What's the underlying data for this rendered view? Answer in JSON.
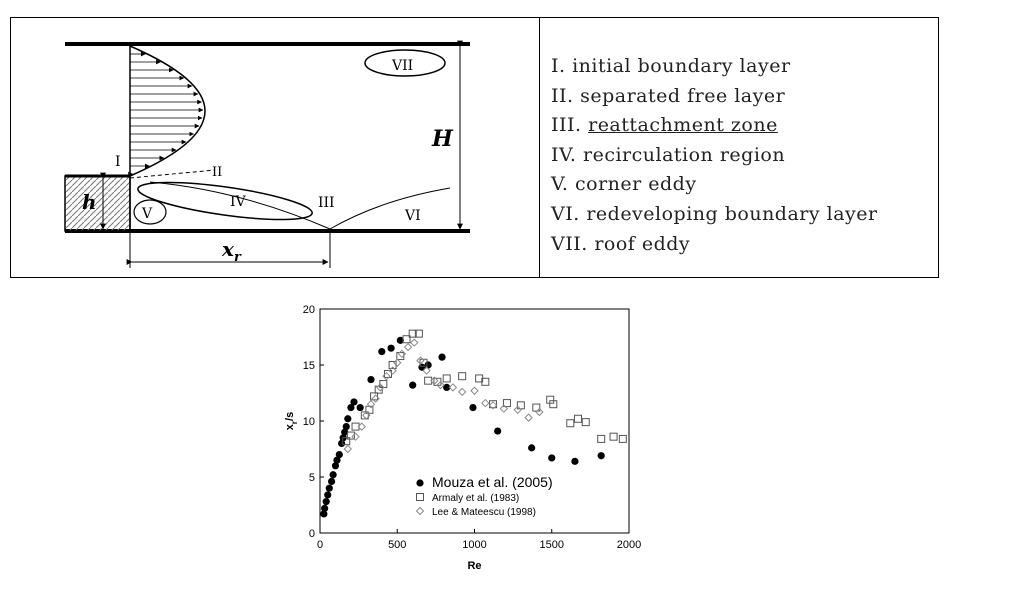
{
  "diagram": {
    "labels": {
      "roof": "VII",
      "height": "H",
      "initial": "I",
      "separated": "II",
      "recirculation": "IV",
      "reattachment": "III",
      "redeveloping": "VI",
      "corner": "V",
      "step": "h",
      "length": "x",
      "length_sub": "r"
    }
  },
  "legend_list": [
    {
      "numeral": "I.",
      "text": "initial boundary layer"
    },
    {
      "numeral": "II.",
      "text": "separated free layer"
    },
    {
      "numeral": "III.",
      "text": "reattachment zone"
    },
    {
      "numeral": "IV.",
      "text": "recirculation region"
    },
    {
      "numeral": "V.",
      "text": "corner eddy"
    },
    {
      "numeral": "VI.",
      "text": "redeveloping boundary layer"
    },
    {
      "numeral": "VII.",
      "text": "roof eddy"
    }
  ],
  "chart_data": {
    "type": "scatter",
    "x_label": "Re",
    "y_label": "x",
    "y_label_sub": "r",
    "y_label_rest": "/s",
    "xlim": [
      0,
      2000
    ],
    "ylim": [
      0,
      20
    ],
    "xticks": [
      0,
      500,
      1000,
      1500,
      2000
    ],
    "yticks": [
      0,
      5,
      10,
      15,
      20
    ],
    "series": [
      {
        "name": "Mouza et al. (2005)",
        "color": "#000000",
        "marker": "circle",
        "x": [
          25,
          30,
          40,
          50,
          60,
          75,
          85,
          100,
          110,
          125,
          140,
          150,
          160,
          170,
          180,
          200,
          220,
          260,
          330,
          400,
          460,
          520,
          600,
          660,
          700,
          790,
          820,
          990,
          1150,
          1370,
          1500,
          1650,
          1820
        ],
        "values": [
          1.7,
          2.2,
          2.8,
          3.4,
          4,
          4.6,
          5.2,
          6,
          6.5,
          7,
          8,
          8.5,
          9,
          9.5,
          10.2,
          11.2,
          11.7,
          11.2,
          13.7,
          16.2,
          16.5,
          17.2,
          13.2,
          14.8,
          15,
          15.7,
          13,
          11.2,
          9.1,
          7.6,
          6.7,
          6.4,
          6.9
        ]
      },
      {
        "name": "Armaly et al. (1983)",
        "color": "#555555",
        "marker": "square",
        "x": [
          170,
          200,
          230,
          290,
          320,
          350,
          380,
          410,
          440,
          470,
          520,
          560,
          600,
          640,
          670,
          700,
          760,
          820,
          920,
          1030,
          1070,
          1120,
          1210,
          1300,
          1400,
          1490,
          1510,
          1620,
          1670,
          1720,
          1820,
          1900,
          1960
        ],
        "values": [
          8.2,
          8.7,
          9.5,
          10.5,
          11,
          12.2,
          12.8,
          13.3,
          14.2,
          15,
          15.8,
          17.3,
          17.8,
          17.8,
          15.2,
          13.6,
          13.5,
          13.8,
          14,
          13.8,
          13.5,
          11.5,
          11.6,
          11.4,
          11.2,
          11.9,
          11.5,
          9.8,
          10.2,
          9.9,
          8.4,
          8.6,
          8.4
        ]
      },
      {
        "name": "Lee & Mateescu (1998)",
        "color": "#888888",
        "marker": "diamond",
        "x": [
          180,
          230,
          270,
          300,
          330,
          360,
          390,
          430,
          470,
          500,
          530,
          570,
          610,
          650,
          690,
          740,
          780,
          860,
          920,
          1000,
          1070,
          1120,
          1190,
          1280,
          1350,
          1420
        ],
        "values": [
          7.5,
          8.6,
          9.5,
          10.5,
          11.5,
          12,
          13,
          14,
          14.5,
          15.2,
          16,
          16.6,
          17,
          15.4,
          14.5,
          13.6,
          13.2,
          13,
          12.6,
          12.7,
          11.6,
          11.4,
          11.1,
          11,
          10.3,
          10.8
        ]
      }
    ]
  }
}
